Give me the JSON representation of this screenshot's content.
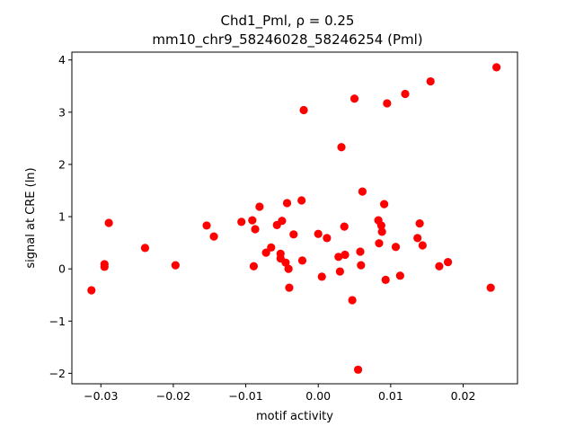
{
  "chart_data": {
    "type": "scatter",
    "title_line1": "Chd1_Pml, ρ = 0.25",
    "title_line2": "mm10_chr9_58246028_58246254 (Pml)",
    "xlabel": "motif activity",
    "ylabel": "signal at CRE (ln)",
    "xlim": [
      -0.034,
      0.0275
    ],
    "ylim": [
      -2.2,
      4.15
    ],
    "xticks": [
      {
        "value": -0.03,
        "label": "−0.03"
      },
      {
        "value": -0.02,
        "label": "−0.02"
      },
      {
        "value": -0.01,
        "label": "−0.01"
      },
      {
        "value": 0.0,
        "label": "0.00"
      },
      {
        "value": 0.01,
        "label": "0.01"
      },
      {
        "value": 0.02,
        "label": "0.02"
      }
    ],
    "yticks": [
      {
        "value": -2,
        "label": "−2"
      },
      {
        "value": -1,
        "label": "−1"
      },
      {
        "value": 0,
        "label": "0"
      },
      {
        "value": 1,
        "label": "1"
      },
      {
        "value": 2,
        "label": "2"
      },
      {
        "value": 3,
        "label": "3"
      },
      {
        "value": 4,
        "label": "4"
      }
    ],
    "grid": false,
    "marker_color": "#ff0000",
    "points": [
      {
        "x": -0.0313,
        "y": -0.41
      },
      {
        "x": -0.0295,
        "y": 0.09
      },
      {
        "x": -0.0295,
        "y": 0.04
      },
      {
        "x": -0.0289,
        "y": 0.88
      },
      {
        "x": -0.0239,
        "y": 0.4
      },
      {
        "x": -0.0197,
        "y": 0.07
      },
      {
        "x": -0.0154,
        "y": 0.83
      },
      {
        "x": -0.0144,
        "y": 0.62
      },
      {
        "x": -0.0106,
        "y": 0.9
      },
      {
        "x": -0.0091,
        "y": 0.93
      },
      {
        "x": -0.0089,
        "y": 0.05
      },
      {
        "x": -0.0087,
        "y": 0.76
      },
      {
        "x": -0.0081,
        "y": 1.19
      },
      {
        "x": -0.0072,
        "y": 0.31
      },
      {
        "x": -0.0065,
        "y": 0.41
      },
      {
        "x": -0.0057,
        "y": 0.84
      },
      {
        "x": -0.0052,
        "y": 0.29
      },
      {
        "x": -0.0052,
        "y": 0.2
      },
      {
        "x": -0.005,
        "y": 0.92
      },
      {
        "x": -0.0045,
        "y": 0.12
      },
      {
        "x": -0.0043,
        "y": 1.26
      },
      {
        "x": -0.0041,
        "y": 0.0
      },
      {
        "x": -0.004,
        "y": -0.36
      },
      {
        "x": -0.0034,
        "y": 0.66
      },
      {
        "x": -0.0023,
        "y": 1.31
      },
      {
        "x": -0.0022,
        "y": 0.16
      },
      {
        "x": -0.002,
        "y": 3.04
      },
      {
        "x": 0.0,
        "y": 0.67
      },
      {
        "x": 0.0005,
        "y": -0.15
      },
      {
        "x": 0.0012,
        "y": 0.59
      },
      {
        "x": 0.0028,
        "y": 0.23
      },
      {
        "x": 0.003,
        "y": -0.05
      },
      {
        "x": 0.0032,
        "y": 2.33
      },
      {
        "x": 0.0036,
        "y": 0.81
      },
      {
        "x": 0.0037,
        "y": 0.27
      },
      {
        "x": 0.0047,
        "y": -0.6
      },
      {
        "x": 0.005,
        "y": 3.26
      },
      {
        "x": 0.0055,
        "y": -1.93
      },
      {
        "x": 0.0058,
        "y": 0.33
      },
      {
        "x": 0.0059,
        "y": 0.07
      },
      {
        "x": 0.0061,
        "y": 1.48
      },
      {
        "x": 0.0083,
        "y": 0.93
      },
      {
        "x": 0.0084,
        "y": 0.49
      },
      {
        "x": 0.0087,
        "y": 0.83
      },
      {
        "x": 0.0088,
        "y": 0.71
      },
      {
        "x": 0.0091,
        "y": 1.24
      },
      {
        "x": 0.0093,
        "y": -0.21
      },
      {
        "x": 0.0095,
        "y": 3.17
      },
      {
        "x": 0.0107,
        "y": 0.42
      },
      {
        "x": 0.0113,
        "y": -0.13
      },
      {
        "x": 0.012,
        "y": 3.35
      },
      {
        "x": 0.0137,
        "y": 0.59
      },
      {
        "x": 0.014,
        "y": 0.87
      },
      {
        "x": 0.0144,
        "y": 0.45
      },
      {
        "x": 0.0155,
        "y": 3.59
      },
      {
        "x": 0.0167,
        "y": 0.05
      },
      {
        "x": 0.0179,
        "y": 0.13
      },
      {
        "x": 0.0238,
        "y": -0.36
      },
      {
        "x": 0.0246,
        "y": 3.86
      }
    ]
  }
}
